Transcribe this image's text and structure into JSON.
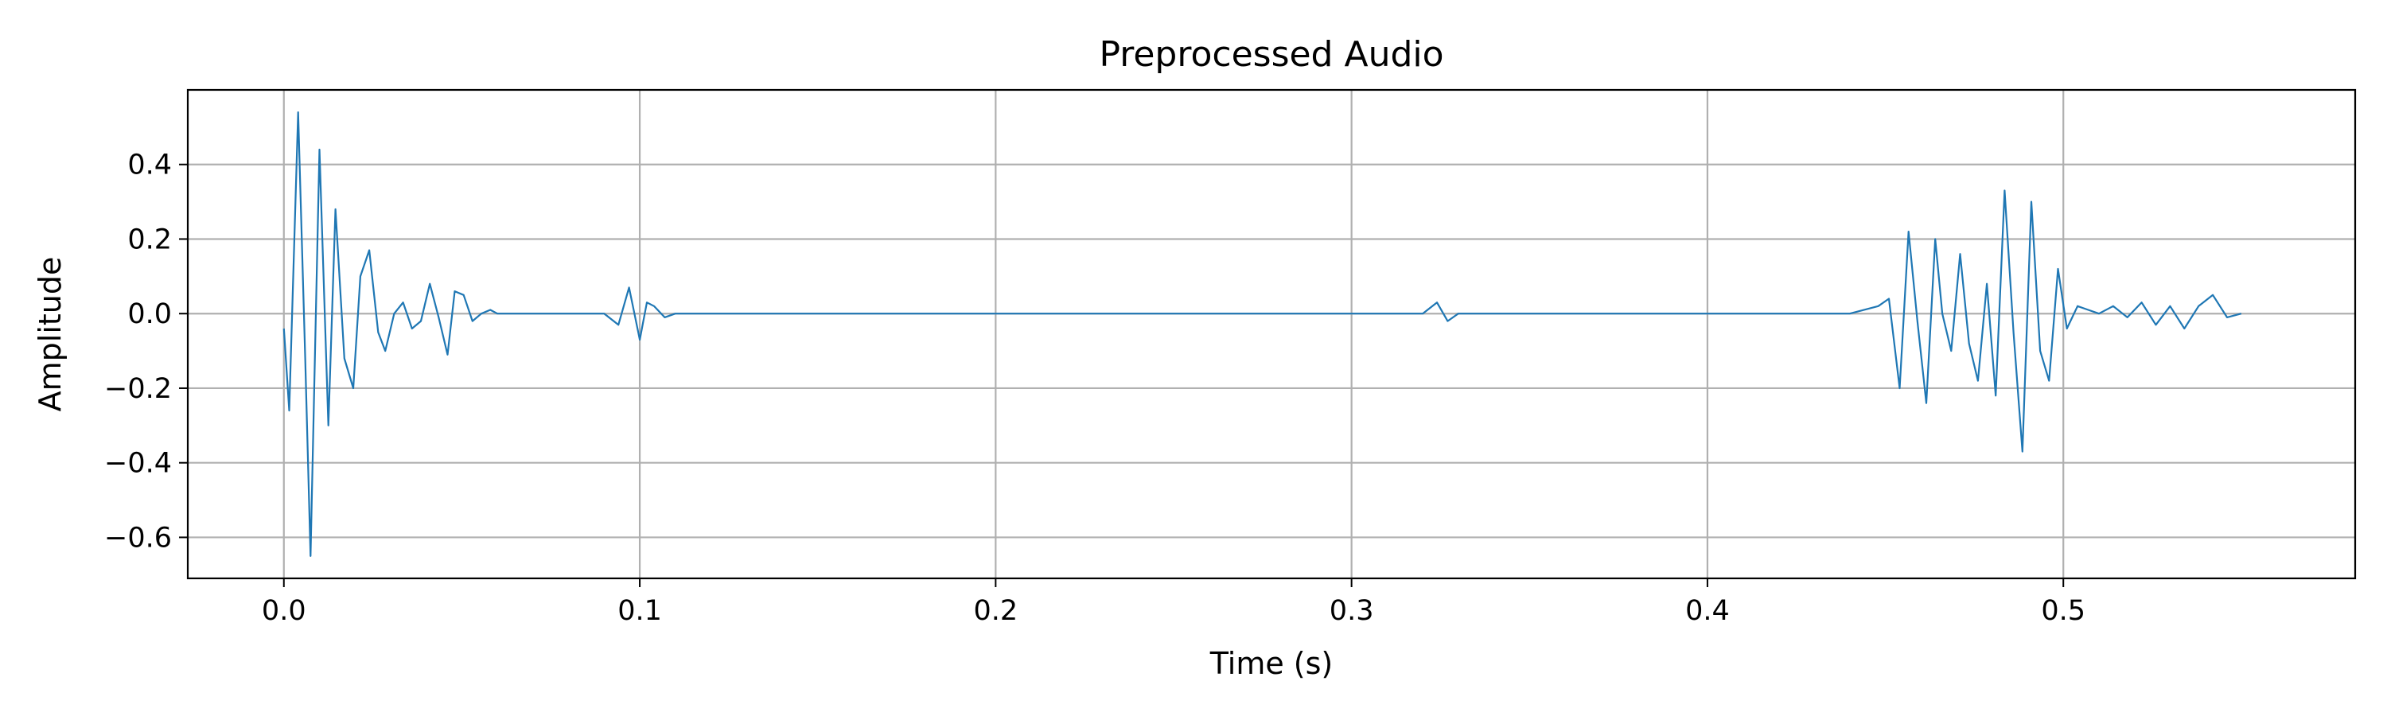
{
  "chart_data": {
    "type": "line",
    "title": "Preprocessed Audio",
    "xlabel": "Time (s)",
    "ylabel": "Amplitude",
    "xlim": [
      -0.027,
      0.582
    ],
    "ylim": [
      -0.71,
      0.6
    ],
    "grid": true,
    "line_color": "#1f77b4",
    "x_ticks": [
      0.0,
      0.1,
      0.2,
      0.3,
      0.4,
      0.5
    ],
    "x_tick_labels": [
      "0.0",
      "0.1",
      "0.2",
      "0.3",
      "0.4",
      "0.5"
    ],
    "y_ticks": [
      -0.6,
      -0.4,
      -0.2,
      0.0,
      0.2,
      0.4
    ],
    "y_tick_labels": [
      "−0.6",
      "−0.4",
      "−0.2",
      "0.0",
      "0.2",
      "0.4"
    ],
    "series": [
      {
        "x": [
          0.0,
          0.0015,
          0.004,
          0.006,
          0.0075,
          0.01,
          0.0125,
          0.0145,
          0.017,
          0.0195,
          0.0215,
          0.024,
          0.0265,
          0.0285,
          0.031,
          0.0335,
          0.036,
          0.0385,
          0.041,
          0.0435,
          0.046,
          0.048,
          0.0505,
          0.053,
          0.0555,
          0.058,
          0.06,
          0.07,
          0.08,
          0.09,
          0.094,
          0.097,
          0.1,
          0.102,
          0.104,
          0.107,
          0.11,
          0.12,
          0.15,
          0.2,
          0.25,
          0.3,
          0.32,
          0.324,
          0.327,
          0.33,
          0.35,
          0.4,
          0.44,
          0.448,
          0.451,
          0.454,
          0.4565,
          0.459,
          0.4615,
          0.464,
          0.466,
          0.4685,
          0.471,
          0.4735,
          0.476,
          0.4785,
          0.481,
          0.4835,
          0.486,
          0.4885,
          0.491,
          0.4935,
          0.496,
          0.4985,
          0.501,
          0.504,
          0.507,
          0.51,
          0.514,
          0.518,
          0.522,
          0.526,
          0.53,
          0.534,
          0.538,
          0.542,
          0.546,
          0.55
        ],
        "y": [
          -0.04,
          -0.26,
          0.54,
          -0.12,
          -0.65,
          0.44,
          -0.3,
          0.28,
          -0.12,
          -0.2,
          0.1,
          0.17,
          -0.05,
          -0.1,
          0.0,
          0.03,
          -0.04,
          -0.02,
          0.08,
          -0.01,
          -0.11,
          0.06,
          0.05,
          -0.02,
          0.0,
          0.01,
          0.0,
          0.0,
          0.0,
          0.0,
          -0.03,
          0.07,
          -0.07,
          0.03,
          0.02,
          -0.01,
          0.0,
          0.0,
          0.0,
          0.0,
          0.0,
          0.0,
          0.0,
          0.03,
          -0.02,
          0.0,
          0.0,
          0.0,
          0.0,
          0.02,
          0.04,
          -0.2,
          0.22,
          -0.02,
          -0.24,
          0.2,
          0.0,
          -0.1,
          0.16,
          -0.08,
          -0.18,
          0.08,
          -0.22,
          0.33,
          -0.05,
          -0.37,
          0.3,
          -0.1,
          -0.18,
          0.12,
          -0.04,
          0.02,
          0.01,
          0.0,
          0.02,
          -0.01,
          0.03,
          -0.03,
          0.02,
          -0.04,
          0.02,
          0.05,
          -0.01,
          0.0
        ]
      }
    ]
  }
}
